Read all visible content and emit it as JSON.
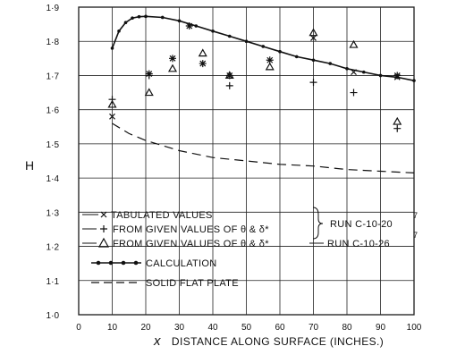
{
  "chart_data": {
    "type": "line",
    "title": "",
    "xlabel": "x  DISTANCE ALONG SURFACE (INCHES.)",
    "ylabel": "H",
    "xlim": [
      0,
      100
    ],
    "ylim": [
      1.0,
      1.9
    ],
    "grid": true,
    "x_ticks": [
      "0",
      "10",
      "20",
      "30",
      "40",
      "50",
      "60",
      "70",
      "80",
      "90",
      "100"
    ],
    "y_ticks": [
      "1·0",
      "1·1",
      "1·2",
      "1·3",
      "1·4",
      "1·5",
      "1·6",
      "1·7",
      "1·8",
      "1·9"
    ],
    "legend": {
      "placement": "bottom-left",
      "entries": {
        "tabulated": "TABULATED VALUES",
        "plus": "FROM GIVEN VALUES OF θ & δ*",
        "triangle": "FROM GIVEN VALUES OF θ & δ*",
        "calc": "CALCULATION",
        "flat": "SOLID FLAT PLATE"
      },
      "run1": "RUN C-10-20",
      "run1_sup": "7",
      "run2": "RUN C-10-26",
      "run2_sup": "7"
    },
    "series": [
      {
        "name": "TABULATED VALUES",
        "marker": "x",
        "points": [
          [
            10,
            1.58
          ],
          [
            70,
            1.81
          ],
          [
            82,
            1.71
          ],
          [
            95,
            1.695
          ]
        ]
      },
      {
        "name": "FROM GIVEN VALUES OF θ & δ*",
        "marker": "plus",
        "points": [
          [
            10,
            1.63
          ],
          [
            21,
            1.7
          ],
          [
            45,
            1.67
          ],
          [
            70,
            1.68
          ],
          [
            82,
            1.65
          ],
          [
            95,
            1.545
          ]
        ]
      },
      {
        "name": "FROM GIVEN VALUES OF θ & δ*",
        "marker": "triangle",
        "points": [
          [
            10,
            1.615
          ],
          [
            21,
            1.65
          ],
          [
            28,
            1.72
          ],
          [
            37,
            1.765
          ],
          [
            45,
            1.7
          ],
          [
            57,
            1.725
          ],
          [
            70,
            1.825
          ],
          [
            82,
            1.79
          ],
          [
            95,
            1.565
          ]
        ]
      },
      {
        "name": "RUN C-10-20 (asterisk)",
        "marker": "asterisk",
        "points": [
          [
            21,
            1.705
          ],
          [
            28,
            1.75
          ],
          [
            33,
            1.845
          ],
          [
            37,
            1.735
          ],
          [
            45,
            1.7
          ],
          [
            57,
            1.745
          ],
          [
            95,
            1.7
          ]
        ]
      },
      {
        "name": "CALCULATION",
        "marker": "dotline",
        "points": [
          [
            10,
            1.78
          ],
          [
            12,
            1.83
          ],
          [
            14,
            1.855
          ],
          [
            16,
            1.868
          ],
          [
            18,
            1.872
          ],
          [
            20,
            1.873
          ],
          [
            25,
            1.87
          ],
          [
            30,
            1.86
          ],
          [
            35,
            1.845
          ],
          [
            40,
            1.83
          ],
          [
            45,
            1.815
          ],
          [
            50,
            1.8
          ],
          [
            55,
            1.785
          ],
          [
            60,
            1.77
          ],
          [
            65,
            1.755
          ],
          [
            70,
            1.745
          ],
          [
            75,
            1.735
          ],
          [
            80,
            1.72
          ],
          [
            85,
            1.71
          ],
          [
            90,
            1.7
          ],
          [
            95,
            1.695
          ],
          [
            100,
            1.685
          ]
        ]
      },
      {
        "name": "SOLID FLAT PLATE",
        "marker": "dash",
        "points": [
          [
            10,
            1.56
          ],
          [
            15,
            1.53
          ],
          [
            20,
            1.51
          ],
          [
            30,
            1.48
          ],
          [
            40,
            1.46
          ],
          [
            50,
            1.45
          ],
          [
            60,
            1.44
          ],
          [
            70,
            1.435
          ],
          [
            80,
            1.425
          ],
          [
            90,
            1.42
          ],
          [
            100,
            1.415
          ]
        ]
      }
    ]
  }
}
